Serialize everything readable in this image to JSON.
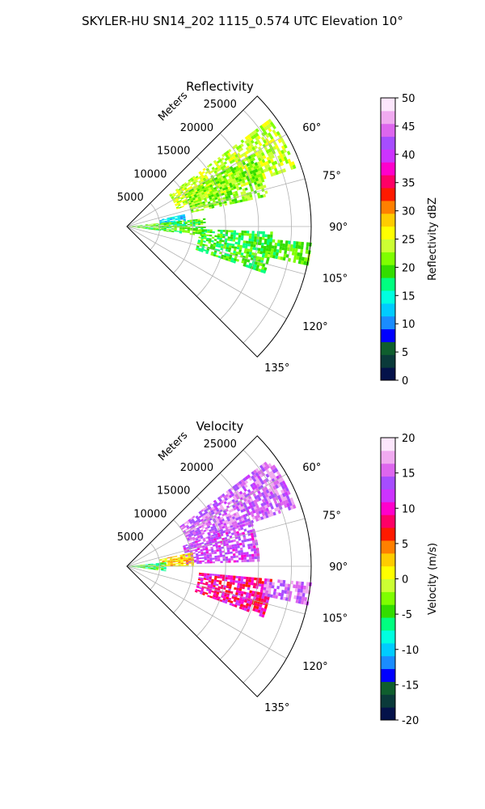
{
  "page_title": "SKYLER-HU  SN14_202  1115_0.574 UTC Elevation 10°",
  "colors": {
    "grid": "#b0b0b0",
    "frame": "#000000"
  },
  "chart_data": [
    {
      "type": "heatmap",
      "title": "Reflectivity",
      "radial_label": "Meters",
      "radial_ticks": [
        5000,
        10000,
        15000,
        20000,
        25000
      ],
      "radial_max": 28000,
      "angle_range_deg": [
        45,
        135
      ],
      "angle_ticks": [
        "60°",
        "75°",
        "90°",
        "105°",
        "120°",
        "135°"
      ],
      "colorbar": {
        "label": "Reflectivity dBZ",
        "range": [
          0,
          50
        ],
        "ticks": [
          "0",
          "5",
          "10",
          "15",
          "20",
          "25",
          "30",
          "35",
          "40",
          "45",
          "50"
        ],
        "palette": [
          "#04124a",
          "#0a3a3a",
          "#0f5e2e",
          "#0000ff",
          "#1a8cff",
          "#00ccff",
          "#00ffe0",
          "#00ff80",
          "#33dd00",
          "#7fff00",
          "#ccff33",
          "#ffff00",
          "#ffcc00",
          "#ff8000",
          "#ff1a00",
          "#ff0066",
          "#ff00cc",
          "#cc33ff",
          "#a64dff",
          "#dd66ee",
          "#f0aaf0",
          "#fce6fc"
        ]
      },
      "echo_regions": [
        {
          "az": [
            53,
            70
          ],
          "r": [
            8000,
            27000
          ],
          "value": 24
        },
        {
          "az": [
            60,
            78
          ],
          "r": [
            10000,
            22000
          ],
          "value": 22
        },
        {
          "az": [
            78,
            88
          ],
          "r": [
            5000,
            9000
          ],
          "value": 13
        },
        {
          "az": [
            84,
            97
          ],
          "r": [
            0,
            12000
          ],
          "value": 20
        },
        {
          "az": [
            92,
            108
          ],
          "r": [
            11000,
            22000
          ],
          "value": 19
        },
        {
          "az": [
            95,
            102
          ],
          "r": [
            21000,
            28000
          ],
          "value": 20
        }
      ]
    },
    {
      "type": "heatmap",
      "title": "Velocity",
      "radial_label": "Meters",
      "radial_ticks": [
        5000,
        10000,
        15000,
        20000,
        25000
      ],
      "radial_max": 28000,
      "angle_range_deg": [
        45,
        135
      ],
      "angle_ticks": [
        "60°",
        "75°",
        "90°",
        "105°",
        "120°",
        "135°"
      ],
      "colorbar": {
        "label": "Velocity (m/s)",
        "range": [
          -20,
          20
        ],
        "ticks": [
          "-20",
          "-15",
          "-10",
          "-5",
          "0",
          "5",
          "10",
          "15",
          "20"
        ],
        "palette": [
          "#04124a",
          "#0a3a3a",
          "#0f5e2e",
          "#0000ff",
          "#1a8cff",
          "#00ccff",
          "#00ffe0",
          "#00ff80",
          "#33dd00",
          "#7fff00",
          "#ccff33",
          "#ffff00",
          "#ffcc00",
          "#ff8000",
          "#ff1a00",
          "#ff0066",
          "#ff00cc",
          "#cc33ff",
          "#a64dff",
          "#dd66ee",
          "#f0aaf0",
          "#fce6fc"
        ]
      },
      "echo_regions": [
        {
          "az": [
            53,
            70
          ],
          "r": [
            10000,
            27000
          ],
          "value": 15
        },
        {
          "az": [
            70,
            88
          ],
          "r": [
            9000,
            20000
          ],
          "value": 13
        },
        {
          "az": [
            78,
            90
          ],
          "r": [
            5000,
            10000
          ],
          "value": 2
        },
        {
          "az": [
            84,
            97
          ],
          "r": [
            0,
            6000
          ],
          "value": -5
        },
        {
          "az": [
            95,
            110
          ],
          "r": [
            11000,
            22000
          ],
          "value": 9
        },
        {
          "az": [
            95,
            102
          ],
          "r": [
            21000,
            28000
          ],
          "value": 15
        }
      ]
    }
  ]
}
